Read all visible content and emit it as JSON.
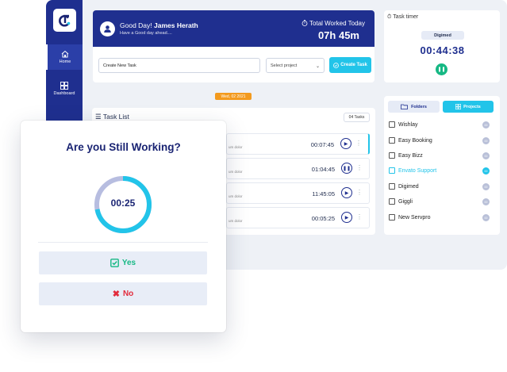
{
  "sidebar": {
    "items": [
      {
        "label": "Home",
        "icon": "home-icon"
      },
      {
        "label": "Dashboard",
        "icon": "dashboard-icon"
      }
    ]
  },
  "header": {
    "greeting_prefix": "Good Day! ",
    "user_name": "James Herath",
    "subtitle": "Have a Good day ahead....",
    "total_worked_label": "Total Worked Today",
    "total_worked_value": "07h 45m"
  },
  "create_task": {
    "input_value": "Create New Task",
    "select_placeholder": "Select project",
    "button_label": "Create Task"
  },
  "date_badge": "Wed, 02 2021",
  "task_list": {
    "title": "Task List",
    "count_label": "04 Tasks",
    "rows": [
      {
        "sub": "um dolor",
        "time": "00:07:45",
        "state": "play"
      },
      {
        "sub": "um dolor",
        "time": "01:04:45",
        "state": "pause"
      },
      {
        "sub": "um dolor",
        "time": "11:45:05",
        "state": "play"
      },
      {
        "sub": "um dolor",
        "time": "00:05:25",
        "state": "play"
      }
    ]
  },
  "task_timer": {
    "title": "Task timer",
    "project": "Digimed",
    "time": "00:44:38"
  },
  "tabs": {
    "folders": "Folders",
    "projects": "Projects"
  },
  "projects": [
    {
      "name": "Wishlay",
      "count": "00",
      "highlight": false
    },
    {
      "name": "Easy Booking",
      "count": "00",
      "highlight": false
    },
    {
      "name": "Easy Bizz",
      "count": "00",
      "highlight": false
    },
    {
      "name": "Envato Support",
      "count": "00",
      "highlight": true
    },
    {
      "name": "Digimed",
      "count": "00",
      "highlight": false
    },
    {
      "name": "Giggli",
      "count": "00",
      "highlight": false
    },
    {
      "name": "New Servpro",
      "count": "00",
      "highlight": false
    }
  ],
  "modal": {
    "title": "Are you Still Working?",
    "countdown": "00:25",
    "countdown_progress": 0.72,
    "yes_label": "Yes",
    "no_label": "No"
  },
  "colors": {
    "brand": "#1f2f8f",
    "accent": "#22c4e9",
    "success": "#16b884",
    "danger": "#e22b3c",
    "warning": "#f39a1e"
  }
}
